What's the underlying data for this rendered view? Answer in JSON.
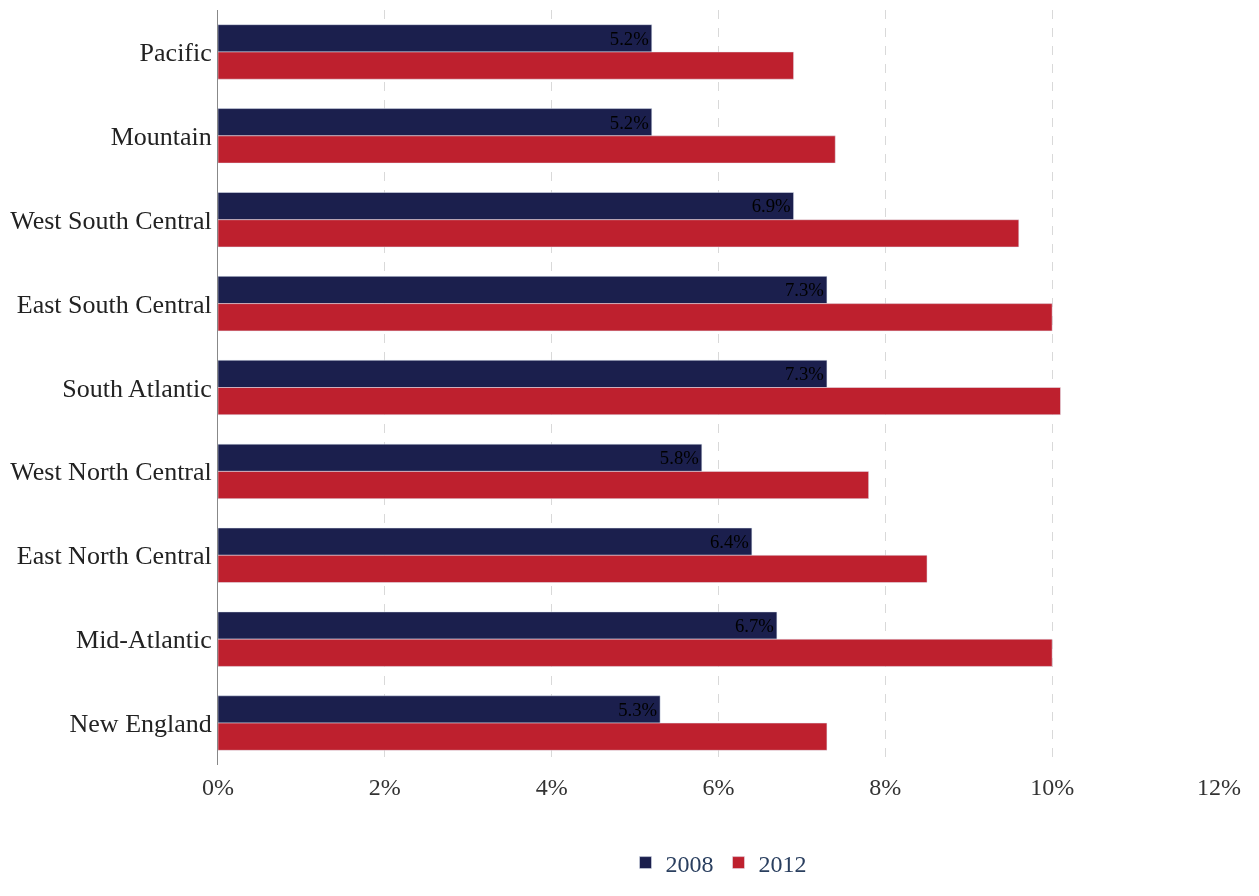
{
  "chart_data": {
    "type": "bar",
    "orientation": "horizontal",
    "categories": [
      "Pacific",
      "Mountain",
      "West South Central",
      "East South Central",
      "South Atlantic",
      "West North Central",
      "East North Central",
      "Mid-Atlantic",
      "New England"
    ],
    "series": [
      {
        "name": "2008",
        "color": "#1b1f4d",
        "values": [
          5.2,
          5.2,
          6.9,
          7.3,
          7.3,
          5.8,
          6.4,
          6.7,
          5.3
        ],
        "value_labels": [
          "5.2%",
          "5.2%",
          "6.9%",
          "7.3%",
          "7.3%",
          "5.8%",
          "6.4%",
          "6.7%",
          "5.3%"
        ]
      },
      {
        "name": "2012",
        "color": "#be202e",
        "values": [
          6.9,
          7.4,
          9.6,
          10.0,
          10.1,
          7.8,
          8.5,
          10.0,
          7.3
        ]
      }
    ],
    "xlim": [
      0,
      12
    ],
    "xticks": [
      {
        "value": 0,
        "label": "0%"
      },
      {
        "value": 2,
        "label": "2%"
      },
      {
        "value": 4,
        "label": "4%"
      },
      {
        "value": 6,
        "label": "6%"
      },
      {
        "value": 8,
        "label": "8%"
      },
      {
        "value": 10,
        "label": "10%"
      },
      {
        "value": 12,
        "label": "12%"
      }
    ],
    "grid": "x",
    "legend": "bottom"
  }
}
